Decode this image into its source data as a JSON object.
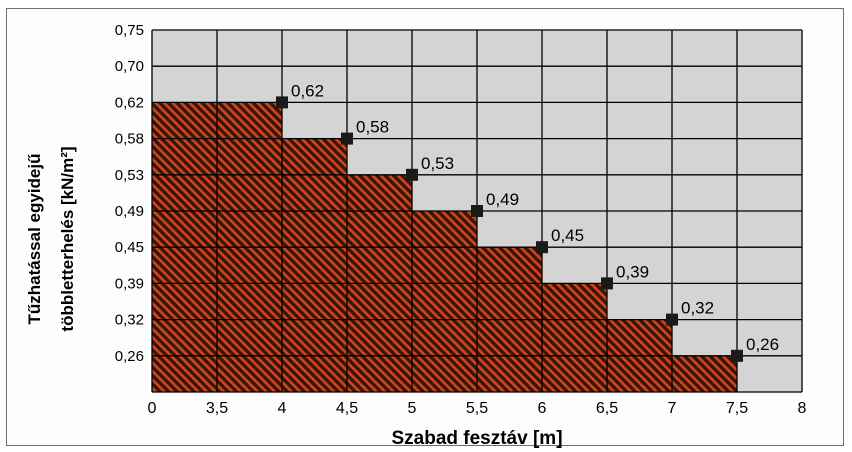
{
  "chart_data": {
    "type": "area",
    "title": "",
    "xlabel": "Szabad fesztáv [m]",
    "ylabel_line1": "Tűzhatással egyidejű",
    "ylabel_line2": "többletterhelés [kN/m²]",
    "x_ticks": [
      "0",
      "3,5",
      "4",
      "4,5",
      "5",
      "5,5",
      "6",
      "6,5",
      "7",
      "7,5",
      "8"
    ],
    "y_ticks": [
      "0,26",
      "0,32",
      "0,39",
      "0,45",
      "0,49",
      "0,53",
      "0,58",
      "0,62",
      "0,70",
      "0,75"
    ],
    "points": [
      {
        "x": "4",
        "y": 0.62,
        "label": "0,62"
      },
      {
        "x": "4,5",
        "y": 0.58,
        "label": "0,58"
      },
      {
        "x": "5",
        "y": 0.53,
        "label": "0,53"
      },
      {
        "x": "5,5",
        "y": 0.49,
        "label": "0,49"
      },
      {
        "x": "6",
        "y": 0.45,
        "label": "0,45"
      },
      {
        "x": "6,5",
        "y": 0.39,
        "label": "0,39"
      },
      {
        "x": "7",
        "y": 0.32,
        "label": "0,32"
      },
      {
        "x": "7,5",
        "y": 0.26,
        "label": "0,26"
      }
    ],
    "grid": true,
    "colors": {
      "fill_dark": "#3a1608",
      "fill_stripe": "#d2461e",
      "plot_bg": "#d4d4d4",
      "marker": "#1a1a1a"
    }
  }
}
